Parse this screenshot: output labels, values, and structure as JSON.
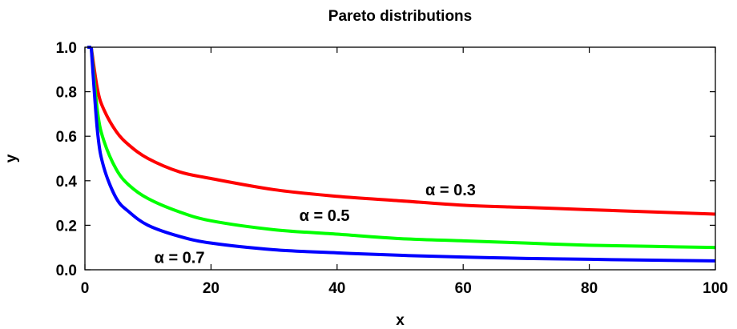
{
  "chart_data": {
    "type": "line",
    "title": "Pareto distributions",
    "xlabel": "x",
    "ylabel": "y",
    "xlim": [
      0,
      100
    ],
    "ylim": [
      0.0,
      1.0
    ],
    "x_ticks": [
      "0",
      "20",
      "40",
      "60",
      "80",
      "100"
    ],
    "y_ticks": [
      "0.0",
      "0.2",
      "0.4",
      "0.6",
      "0.8",
      "1.0"
    ],
    "grid": false,
    "legend": "none",
    "series": [
      {
        "name": "α = 0.3",
        "color": "#ff0000",
        "x": [
          1,
          2,
          3,
          5,
          7,
          10,
          15,
          20,
          30,
          40,
          50,
          60,
          70,
          80,
          90,
          100
        ],
        "y": [
          1.0,
          0.81,
          0.72,
          0.62,
          0.56,
          0.5,
          0.44,
          0.41,
          0.36,
          0.33,
          0.31,
          0.29,
          0.28,
          0.27,
          0.26,
          0.25
        ]
      },
      {
        "name": "α = 0.5",
        "color": "#00ff00",
        "x": [
          1,
          2,
          3,
          5,
          7,
          10,
          15,
          20,
          30,
          40,
          50,
          60,
          70,
          80,
          90,
          100
        ],
        "y": [
          1.0,
          0.71,
          0.58,
          0.45,
          0.38,
          0.32,
          0.26,
          0.22,
          0.18,
          0.16,
          0.14,
          0.13,
          0.12,
          0.11,
          0.105,
          0.1
        ]
      },
      {
        "name": "α = 0.7",
        "color": "#0000ff",
        "x": [
          1,
          2,
          3,
          5,
          7,
          10,
          15,
          20,
          30,
          40,
          50,
          60,
          70,
          80,
          90,
          100
        ],
        "y": [
          1.0,
          0.62,
          0.46,
          0.32,
          0.26,
          0.2,
          0.15,
          0.12,
          0.09,
          0.076,
          0.065,
          0.057,
          0.051,
          0.047,
          0.043,
          0.04
        ]
      }
    ],
    "annotations": [
      {
        "text": "α = 0.3",
        "series": 0,
        "at_x": 58,
        "at_y": 0.36
      },
      {
        "text": "α = 0.5",
        "series": 1,
        "at_x": 38,
        "at_y": 0.245
      },
      {
        "text": "α = 0.7",
        "series": 2,
        "at_x": 15,
        "at_y": 0.055
      }
    ]
  }
}
